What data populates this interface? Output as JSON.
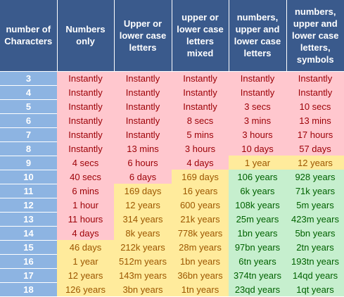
{
  "headers": [
    "number of Characters",
    "Numbers only",
    "Upper or lower case letters",
    "upper or lower case letters mixed",
    "numbers, upper and lower case letters",
    "numbers, upper and lower case letters, symbols"
  ],
  "rows": [
    {
      "n": "3",
      "cells": [
        {
          "t": "Instantly",
          "c": "red"
        },
        {
          "t": "Instantly",
          "c": "red"
        },
        {
          "t": "Instantly",
          "c": "red"
        },
        {
          "t": "Instantly",
          "c": "red"
        },
        {
          "t": "Instantly",
          "c": "red"
        }
      ]
    },
    {
      "n": "4",
      "cells": [
        {
          "t": "Instantly",
          "c": "red"
        },
        {
          "t": "Instantly",
          "c": "red"
        },
        {
          "t": "Instantly",
          "c": "red"
        },
        {
          "t": "Instantly",
          "c": "red"
        },
        {
          "t": "Instantly",
          "c": "red"
        }
      ]
    },
    {
      "n": "5",
      "cells": [
        {
          "t": "Instantly",
          "c": "red"
        },
        {
          "t": "Instantly",
          "c": "red"
        },
        {
          "t": "Instantly",
          "c": "red"
        },
        {
          "t": "3 secs",
          "c": "red"
        },
        {
          "t": "10 secs",
          "c": "red"
        }
      ]
    },
    {
      "n": "6",
      "cells": [
        {
          "t": "Instantly",
          "c": "red"
        },
        {
          "t": "Instantly",
          "c": "red"
        },
        {
          "t": "8 secs",
          "c": "red"
        },
        {
          "t": "3 mins",
          "c": "red"
        },
        {
          "t": "13 mins",
          "c": "red"
        }
      ]
    },
    {
      "n": "7",
      "cells": [
        {
          "t": "Instantly",
          "c": "red"
        },
        {
          "t": "Instantly",
          "c": "red"
        },
        {
          "t": "5 mins",
          "c": "red"
        },
        {
          "t": "3 hours",
          "c": "red"
        },
        {
          "t": "17 hours",
          "c": "red"
        }
      ]
    },
    {
      "n": "8",
      "cells": [
        {
          "t": "Instantly",
          "c": "red"
        },
        {
          "t": "13 mins",
          "c": "red"
        },
        {
          "t": "3 hours",
          "c": "red"
        },
        {
          "t": "10 days",
          "c": "red"
        },
        {
          "t": "57 days",
          "c": "red"
        }
      ]
    },
    {
      "n": "9",
      "cells": [
        {
          "t": "4 secs",
          "c": "red"
        },
        {
          "t": "6 hours",
          "c": "red"
        },
        {
          "t": "4 days",
          "c": "red"
        },
        {
          "t": "1 year",
          "c": "yellow"
        },
        {
          "t": "12 years",
          "c": "yellow"
        }
      ]
    },
    {
      "n": "10",
      "cells": [
        {
          "t": "40 secs",
          "c": "red"
        },
        {
          "t": "6 days",
          "c": "red"
        },
        {
          "t": "169 days",
          "c": "yellow"
        },
        {
          "t": "106 years",
          "c": "green"
        },
        {
          "t": "928 years",
          "c": "green"
        }
      ]
    },
    {
      "n": "11",
      "cells": [
        {
          "t": "6 mins",
          "c": "red"
        },
        {
          "t": "169 days",
          "c": "yellow"
        },
        {
          "t": "16 years",
          "c": "yellow"
        },
        {
          "t": "6k years",
          "c": "green"
        },
        {
          "t": "71k years",
          "c": "green"
        }
      ]
    },
    {
      "n": "12",
      "cells": [
        {
          "t": "1 hour",
          "c": "red"
        },
        {
          "t": "12 years",
          "c": "yellow"
        },
        {
          "t": "600 years",
          "c": "yellow"
        },
        {
          "t": "108k years",
          "c": "green"
        },
        {
          "t": "5m years",
          "c": "green"
        }
      ]
    },
    {
      "n": "13",
      "cells": [
        {
          "t": "11 hours",
          "c": "red"
        },
        {
          "t": "314 years",
          "c": "yellow"
        },
        {
          "t": "21k years",
          "c": "yellow"
        },
        {
          "t": "25m years",
          "c": "green"
        },
        {
          "t": "423m years",
          "c": "green"
        }
      ]
    },
    {
      "n": "14",
      "cells": [
        {
          "t": "4 days",
          "c": "red"
        },
        {
          "t": "8k years",
          "c": "yellow"
        },
        {
          "t": "778k years",
          "c": "yellow"
        },
        {
          "t": "1bn years",
          "c": "green"
        },
        {
          "t": "5bn years",
          "c": "green"
        }
      ]
    },
    {
      "n": "15",
      "cells": [
        {
          "t": "46 days",
          "c": "yellow"
        },
        {
          "t": "212k years",
          "c": "yellow"
        },
        {
          "t": "28m years",
          "c": "yellow"
        },
        {
          "t": "97bn years",
          "c": "green"
        },
        {
          "t": "2tn years",
          "c": "green"
        }
      ]
    },
    {
      "n": "16",
      "cells": [
        {
          "t": "1 year",
          "c": "yellow"
        },
        {
          "t": "512m years",
          "c": "yellow"
        },
        {
          "t": "1bn years",
          "c": "yellow"
        },
        {
          "t": "6tn years",
          "c": "green"
        },
        {
          "t": "193tn years",
          "c": "green"
        }
      ]
    },
    {
      "n": "17",
      "cells": [
        {
          "t": "12 years",
          "c": "yellow"
        },
        {
          "t": "143m years",
          "c": "yellow"
        },
        {
          "t": "36bn years",
          "c": "yellow"
        },
        {
          "t": "374tn years",
          "c": "green"
        },
        {
          "t": "14qd years",
          "c": "green"
        }
      ]
    },
    {
      "n": "18",
      "cells": [
        {
          "t": "126 years",
          "c": "yellow"
        },
        {
          "t": "3bn years",
          "c": "yellow"
        },
        {
          "t": "1tn years",
          "c": "yellow"
        },
        {
          "t": "23qd years",
          "c": "green"
        },
        {
          "t": "1qt years",
          "c": "green"
        }
      ]
    }
  ]
}
